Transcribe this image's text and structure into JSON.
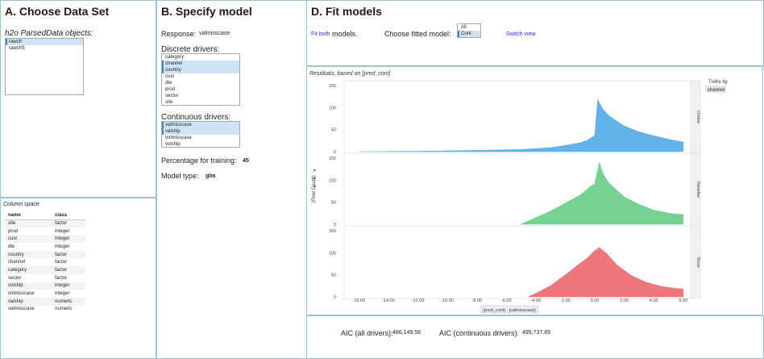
{
  "panelA": {
    "title": "A. Choose Data Set",
    "objects_label": "h2o ParsedData objects:",
    "objects": [
      {
        "label": "rawcfr",
        "selected": true
      },
      {
        "label": "rawcfr5",
        "selected": false
      }
    ],
    "column_space_label": "Column space",
    "table": {
      "headers": [
        "name",
        "class"
      ],
      "rows": [
        [
          "site",
          "factor"
        ],
        [
          "prod",
          "integer"
        ],
        [
          "cust",
          "integer"
        ],
        [
          "dte",
          "integer"
        ],
        [
          "country",
          "factor"
        ],
        [
          "channel",
          "factor"
        ],
        [
          "category",
          "factor"
        ],
        [
          "sector",
          "factor"
        ],
        [
          "volship",
          "integer"
        ],
        [
          "volmisscase",
          "integer"
        ],
        [
          "valship",
          "numeric"
        ],
        [
          "valmisscase",
          "numeric"
        ]
      ]
    }
  },
  "panelB": {
    "title": "B. Specify model",
    "response_label": "Response:",
    "response_value": "valmisscase",
    "discrete_label": "Discrete drivers:",
    "discrete": [
      {
        "label": "category",
        "selected": false
      },
      {
        "label": "channel",
        "selected": true
      },
      {
        "label": "country",
        "selected": true
      },
      {
        "label": "cust",
        "selected": false
      },
      {
        "label": "dte",
        "selected": false
      },
      {
        "label": "prod",
        "selected": false
      },
      {
        "label": "sector",
        "selected": false
      },
      {
        "label": "site",
        "selected": false
      }
    ],
    "continuous_label": "Continuous drivers:",
    "continuous": [
      {
        "label": "valmisscase",
        "selected": true
      },
      {
        "label": "valship",
        "selected": true
      },
      {
        "label": "volmisscase",
        "selected": false
      },
      {
        "label": "volship",
        "selected": false
      }
    ],
    "pct_label": "Percentage for training:",
    "pct_value": "45",
    "model_type_label": "Model type:",
    "model_type_value": "glm"
  },
  "panelD": {
    "title": "D. Fit models",
    "fit_both_link": "Fit both",
    "fit_both_suffix": "models.",
    "choose_label": "Choose fitted model:",
    "choose_options": [
      {
        "label": "All",
        "selected": false
      },
      {
        "label": "Cont",
        "selected": true
      }
    ],
    "switch_view": "Switch view",
    "aic_all_label": "AIC (all drivers):",
    "aic_all_value": "486,149.56",
    "aic_cont_label": "AIC (continuous drivers):",
    "aic_cont_value": "495,737.89"
  },
  "chart_data": {
    "type": "histogram",
    "title": "Residuals, based on [pred_cont]",
    "xlabel": "[pred_cont] - [valmisscase]",
    "ylabel": "(Row Count)",
    "trellis_label": "Trellis by",
    "trellis_value": "channel",
    "xlim": [
      -17,
      6.5
    ],
    "xticks": [
      "-16.00",
      "-14.00",
      "-12.00",
      "-10.00",
      "-8.00",
      "-6.00",
      "-4.00",
      "-2.00",
      "0.00",
      "2.00",
      "4.00",
      "6.00"
    ],
    "xtick_values": [
      -16,
      -14,
      -12,
      -10,
      -8,
      -6,
      -4,
      -2,
      0,
      2,
      4,
      6
    ],
    "ylim": [
      0,
      150
    ],
    "yticks": [
      0,
      50,
      100,
      150
    ],
    "panels": [
      {
        "name": "Online",
        "color": "#5aade8",
        "series": [
          {
            "x": -16.0,
            "y": 0
          },
          {
            "x": -12.0,
            "y": 1
          },
          {
            "x": -8.0,
            "y": 3
          },
          {
            "x": -5.0,
            "y": 5
          },
          {
            "x": -3.0,
            "y": 9
          },
          {
            "x": -2.0,
            "y": 14
          },
          {
            "x": -1.0,
            "y": 20
          },
          {
            "x": -0.5,
            "y": 26
          },
          {
            "x": -0.2,
            "y": 32
          },
          {
            "x": 0.0,
            "y": 38
          },
          {
            "x": 0.2,
            "y": 118
          },
          {
            "x": 0.5,
            "y": 98
          },
          {
            "x": 1.0,
            "y": 80
          },
          {
            "x": 2.0,
            "y": 58
          },
          {
            "x": 3.0,
            "y": 45
          },
          {
            "x": 4.0,
            "y": 36
          },
          {
            "x": 5.0,
            "y": 28
          },
          {
            "x": 5.8,
            "y": 23
          },
          {
            "x": 6.0,
            "y": 22
          }
        ]
      },
      {
        "name": "Reseller",
        "color": "#6fd08a",
        "series": [
          {
            "x": -5.0,
            "y": 0
          },
          {
            "x": -4.0,
            "y": 15
          },
          {
            "x": -3.0,
            "y": 30
          },
          {
            "x": -2.0,
            "y": 48
          },
          {
            "x": -1.0,
            "y": 66
          },
          {
            "x": -0.2,
            "y": 88
          },
          {
            "x": 0.0,
            "y": 92
          },
          {
            "x": 0.3,
            "y": 140
          },
          {
            "x": 0.6,
            "y": 112
          },
          {
            "x": 1.0,
            "y": 92
          },
          {
            "x": 2.0,
            "y": 62
          },
          {
            "x": 3.0,
            "y": 45
          },
          {
            "x": 4.0,
            "y": 32
          },
          {
            "x": 5.0,
            "y": 25
          },
          {
            "x": 6.0,
            "y": 22
          }
        ]
      },
      {
        "name": "Store",
        "color": "#ec7073",
        "series": [
          {
            "x": -4.5,
            "y": 0
          },
          {
            "x": -4.0,
            "y": 8
          },
          {
            "x": -3.0,
            "y": 25
          },
          {
            "x": -2.0,
            "y": 50
          },
          {
            "x": -1.0,
            "y": 76
          },
          {
            "x": -0.5,
            "y": 88
          },
          {
            "x": 0.0,
            "y": 105
          },
          {
            "x": 0.3,
            "y": 112
          },
          {
            "x": 0.8,
            "y": 98
          },
          {
            "x": 1.5,
            "y": 72
          },
          {
            "x": 2.5,
            "y": 48
          },
          {
            "x": 3.5,
            "y": 33
          },
          {
            "x": 4.5,
            "y": 24
          },
          {
            "x": 5.5,
            "y": 19
          },
          {
            "x": 6.0,
            "y": 18
          }
        ]
      }
    ]
  }
}
